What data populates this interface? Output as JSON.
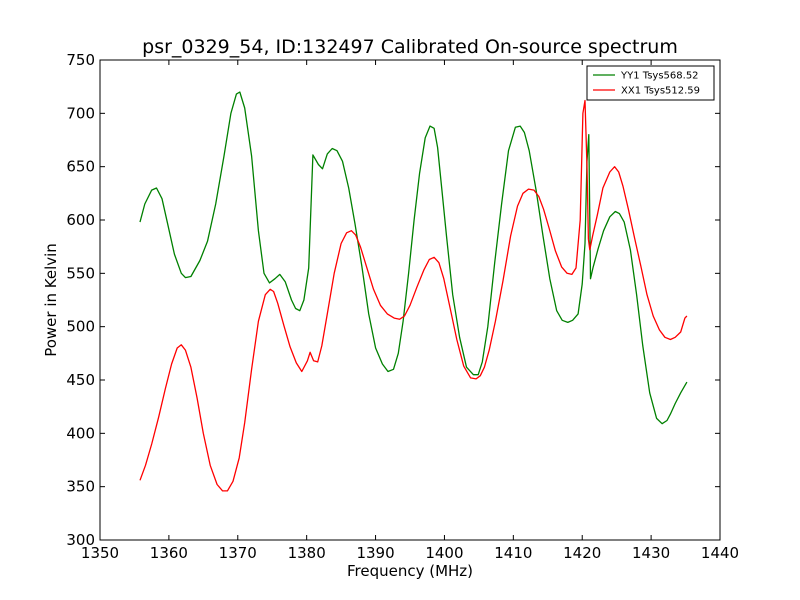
{
  "chart_data": {
    "type": "line",
    "title": "psr_0329_54, ID:132497 Calibrated On-source spectrum",
    "xlabel": "Frequency (MHz)",
    "ylabel": "Power in Kelvin",
    "xlim": [
      1350,
      1440
    ],
    "ylim": [
      300,
      750
    ],
    "xticks": [
      1350,
      1360,
      1370,
      1380,
      1390,
      1400,
      1410,
      1420,
      1430,
      1440
    ],
    "yticks": [
      300,
      350,
      400,
      450,
      500,
      550,
      600,
      650,
      700,
      750
    ],
    "grid": false,
    "legend": "top-right",
    "series": [
      {
        "name": "YY1 Tsys568.52",
        "color": "#008000",
        "x": [
          1355.8,
          1356.5,
          1357.5,
          1358.2,
          1359.0,
          1359.8,
          1360.8,
          1361.8,
          1362.4,
          1363.2,
          1364.5,
          1365.6,
          1366.8,
          1368.0,
          1369.0,
          1369.8,
          1370.3,
          1371.0,
          1372.0,
          1373.0,
          1373.8,
          1374.6,
          1375.4,
          1376.1,
          1376.9,
          1377.8,
          1378.4,
          1379.0,
          1379.6,
          1380.3,
          1380.9,
          1381.7,
          1382.3,
          1383.0,
          1383.7,
          1384.4,
          1385.2,
          1386.1,
          1387.0,
          1388.0,
          1389.0,
          1390.0,
          1391.0,
          1391.8,
          1392.6,
          1393.3,
          1394.0,
          1394.8,
          1395.6,
          1396.4,
          1397.2,
          1397.9,
          1398.5,
          1399.0,
          1399.6,
          1400.3,
          1401.2,
          1402.2,
          1403.2,
          1404.2,
          1404.9,
          1405.5,
          1406.3,
          1407.3,
          1408.3,
          1409.3,
          1410.3,
          1411.0,
          1411.6,
          1412.3,
          1413.3,
          1414.3,
          1415.3,
          1416.3,
          1417.1,
          1417.9,
          1418.6,
          1419.4,
          1420.0,
          1420.4,
          1420.7,
          1420.95,
          1421.2,
          1421.6,
          1422.3,
          1423.1,
          1424.0,
          1424.8,
          1425.4,
          1426.1,
          1427.0,
          1427.9,
          1428.8,
          1429.8,
          1430.8,
          1431.6,
          1432.3,
          1432.8,
          1433.5,
          1434.3,
          1435.2
        ],
        "y": [
          598,
          615,
          628,
          630,
          620,
          597,
          568,
          550,
          546,
          547,
          562,
          580,
          615,
          660,
          700,
          718,
          720,
          705,
          660,
          590,
          550,
          541,
          545,
          549,
          542,
          525,
          517,
          515,
          525,
          555,
          661,
          652,
          648,
          662,
          667,
          665,
          655,
          630,
          597,
          557,
          512,
          480,
          465,
          458,
          460,
          475,
          505,
          550,
          600,
          644,
          677,
          688,
          686,
          668,
          630,
          585,
          530,
          490,
          462,
          455,
          455,
          467,
          500,
          560,
          615,
          665,
          687,
          688,
          682,
          665,
          628,
          585,
          545,
          515,
          506,
          504,
          506,
          512,
          540,
          578,
          655,
          680,
          545,
          556,
          573,
          590,
          603,
          608,
          606,
          598,
          572,
          530,
          482,
          438,
          414,
          409,
          412,
          418,
          428,
          438,
          448
        ]
      },
      {
        "name": "XX1 Tsys512.59",
        "color": "#ff0000",
        "x": [
          1355.8,
          1356.6,
          1357.5,
          1358.5,
          1359.5,
          1360.4,
          1361.2,
          1361.8,
          1362.4,
          1363.2,
          1364.1,
          1365.0,
          1366.0,
          1367.0,
          1367.8,
          1368.5,
          1369.3,
          1370.2,
          1371.0,
          1372.0,
          1373.0,
          1374.0,
          1374.7,
          1375.2,
          1375.8,
          1376.7,
          1377.6,
          1378.5,
          1379.3,
          1380.1,
          1380.5,
          1381.0,
          1381.6,
          1382.2,
          1383.0,
          1384.0,
          1385.0,
          1385.8,
          1386.5,
          1387.1,
          1387.8,
          1388.7,
          1389.7,
          1390.7,
          1391.7,
          1392.7,
          1393.5,
          1394.2,
          1395.0,
          1396.0,
          1397.0,
          1397.8,
          1398.5,
          1399.2,
          1399.9,
          1400.8,
          1401.8,
          1402.8,
          1403.8,
          1404.6,
          1405.2,
          1405.8,
          1406.5,
          1407.4,
          1408.5,
          1409.6,
          1410.6,
          1411.4,
          1412.2,
          1413.0,
          1413.7,
          1414.4,
          1415.2,
          1416.1,
          1417.0,
          1417.8,
          1418.5,
          1419.1,
          1419.7,
          1420.1,
          1420.4,
          1420.7,
          1420.9,
          1421.1,
          1421.5,
          1422.2,
          1423.0,
          1424.0,
          1424.7,
          1425.3,
          1425.9,
          1426.7,
          1427.6,
          1428.5,
          1429.4,
          1430.3,
          1431.2,
          1432.0,
          1432.8,
          1433.5,
          1434.3,
          1434.9,
          1435.2
        ],
        "y": [
          356,
          370,
          390,
          415,
          442,
          465,
          480,
          483,
          478,
          462,
          433,
          400,
          370,
          352,
          346,
          346,
          355,
          377,
          410,
          460,
          505,
          530,
          535,
          533,
          522,
          501,
          481,
          466,
          458,
          468,
          476,
          468,
          467,
          482,
          512,
          550,
          578,
          588,
          590,
          586,
          575,
          556,
          535,
          520,
          512,
          508,
          507,
          510,
          520,
          537,
          553,
          563,
          565,
          560,
          545,
          518,
          488,
          463,
          452,
          451,
          454,
          462,
          478,
          505,
          543,
          585,
          613,
          625,
          629,
          628,
          622,
          610,
          592,
          571,
          556,
          550,
          549,
          555,
          600,
          700,
          712,
          650,
          582,
          572,
          585,
          605,
          630,
          645,
          650,
          645,
          632,
          610,
          583,
          557,
          530,
          510,
          497,
          490,
          488,
          490,
          495,
          508,
          510
        ]
      }
    ]
  }
}
